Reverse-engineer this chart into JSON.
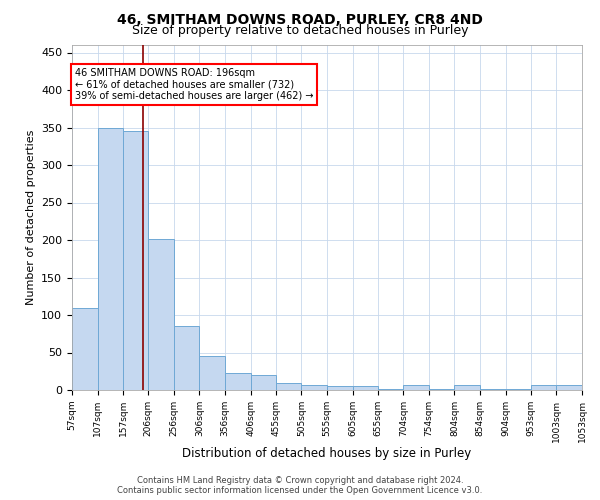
{
  "title": "46, SMITHAM DOWNS ROAD, PURLEY, CR8 4ND",
  "subtitle": "Size of property relative to detached houses in Purley",
  "xlabel": "Distribution of detached houses by size in Purley",
  "ylabel": "Number of detached properties",
  "footer_line1": "Contains HM Land Registry data © Crown copyright and database right 2024.",
  "footer_line2": "Contains public sector information licensed under the Open Government Licence v3.0.",
  "bar_left_edges": [
    57,
    107,
    157,
    206,
    256,
    306,
    356,
    406,
    455,
    505,
    555,
    605,
    655,
    704,
    754,
    804,
    854,
    904,
    953,
    1003
  ],
  "bar_widths": [
    50,
    50,
    49,
    50,
    50,
    50,
    50,
    49,
    50,
    50,
    50,
    50,
    49,
    50,
    50,
    50,
    50,
    49,
    50,
    50
  ],
  "bar_heights": [
    110,
    350,
    345,
    202,
    85,
    45,
    23,
    20,
    10,
    7,
    5,
    5,
    2,
    7,
    2,
    7,
    2,
    1,
    7,
    7
  ],
  "bar_color": "#c5d8f0",
  "bar_edgecolor": "#6fa8d5",
  "tick_labels": [
    "57sqm",
    "107sqm",
    "157sqm",
    "206sqm",
    "256sqm",
    "306sqm",
    "356sqm",
    "406sqm",
    "455sqm",
    "505sqm",
    "555sqm",
    "605sqm",
    "655sqm",
    "704sqm",
    "754sqm",
    "804sqm",
    "854sqm",
    "904sqm",
    "953sqm",
    "1003sqm",
    "1053sqm"
  ],
  "tick_positions": [
    57,
    107,
    157,
    206,
    256,
    306,
    356,
    406,
    455,
    505,
    555,
    605,
    655,
    704,
    754,
    804,
    854,
    904,
    953,
    1003,
    1053
  ],
  "red_line_x": 196,
  "annotation_title": "46 SMITHAM DOWNS ROAD: 196sqm",
  "annotation_line2": "← 61% of detached houses are smaller (732)",
  "annotation_line3": "39% of semi-detached houses are larger (462) →",
  "ylim": [
    0,
    460
  ],
  "xlim": [
    57,
    1053
  ],
  "yticks": [
    0,
    50,
    100,
    150,
    200,
    250,
    300,
    350,
    400,
    450
  ],
  "background_color": "#ffffff",
  "grid_color": "#c8d8ec",
  "title_fontsize": 10,
  "subtitle_fontsize": 9
}
